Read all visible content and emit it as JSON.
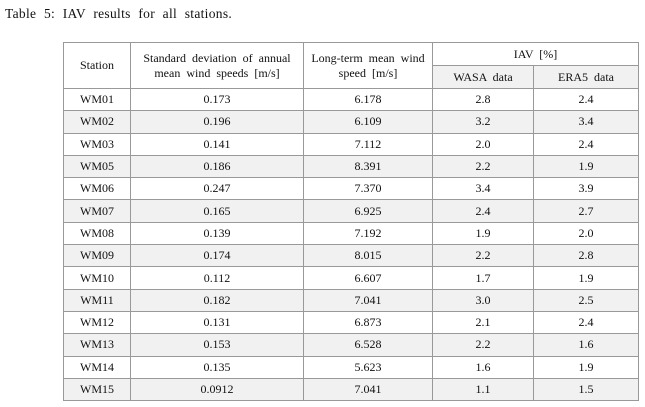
{
  "caption": "Table 5: IAV results for all stations.",
  "table": {
    "header": {
      "station": "Station",
      "std_dev": "Standard deviation of annual mean wind speeds [m/s]",
      "long_term": "Long-term mean wind speed [m/s]",
      "iav_group": "IAV [%]",
      "sub_wasa": "WASA data",
      "sub_era5": "ERA5 data"
    },
    "rows": [
      {
        "station": "WM01",
        "std_dev": "0.173",
        "long_term": "6.178",
        "wasa": "2.8",
        "era5": "2.4"
      },
      {
        "station": "WM02",
        "std_dev": "0.196",
        "long_term": "6.109",
        "wasa": "3.2",
        "era5": "3.4"
      },
      {
        "station": "WM03",
        "std_dev": "0.141",
        "long_term": "7.112",
        "wasa": "2.0",
        "era5": "2.4"
      },
      {
        "station": "WM05",
        "std_dev": "0.186",
        "long_term": "8.391",
        "wasa": "2.2",
        "era5": "1.9"
      },
      {
        "station": "WM06",
        "std_dev": "0.247",
        "long_term": "7.370",
        "wasa": "3.4",
        "era5": "3.9"
      },
      {
        "station": "WM07",
        "std_dev": "0.165",
        "long_term": "6.925",
        "wasa": "2.4",
        "era5": "2.7"
      },
      {
        "station": "WM08",
        "std_dev": "0.139",
        "long_term": "7.192",
        "wasa": "1.9",
        "era5": "2.0"
      },
      {
        "station": "WM09",
        "std_dev": "0.174",
        "long_term": "8.015",
        "wasa": "2.2",
        "era5": "2.8"
      },
      {
        "station": "WM10",
        "std_dev": "0.112",
        "long_term": "6.607",
        "wasa": "1.7",
        "era5": "1.9"
      },
      {
        "station": "WM11",
        "std_dev": "0.182",
        "long_term": "7.041",
        "wasa": "3.0",
        "era5": "2.5"
      },
      {
        "station": "WM12",
        "std_dev": "0.131",
        "long_term": "6.873",
        "wasa": "2.1",
        "era5": "2.4"
      },
      {
        "station": "WM13",
        "std_dev": "0.153",
        "long_term": "6.528",
        "wasa": "2.2",
        "era5": "1.6"
      },
      {
        "station": "WM14",
        "std_dev": "0.135",
        "long_term": "5.623",
        "wasa": "1.6",
        "era5": "1.9"
      },
      {
        "station": "WM15",
        "std_dev": "0.0912",
        "long_term": "7.041",
        "wasa": "1.1",
        "era5": "1.5"
      }
    ],
    "column_keys": [
      "station",
      "std_dev",
      "long_term",
      "wasa",
      "era5"
    ]
  },
  "colors": {
    "background": "#ffffff",
    "text": "#111111",
    "border": "#999999",
    "row_shade": "#f1f1f1",
    "header_shade": "#f1f1f1"
  }
}
